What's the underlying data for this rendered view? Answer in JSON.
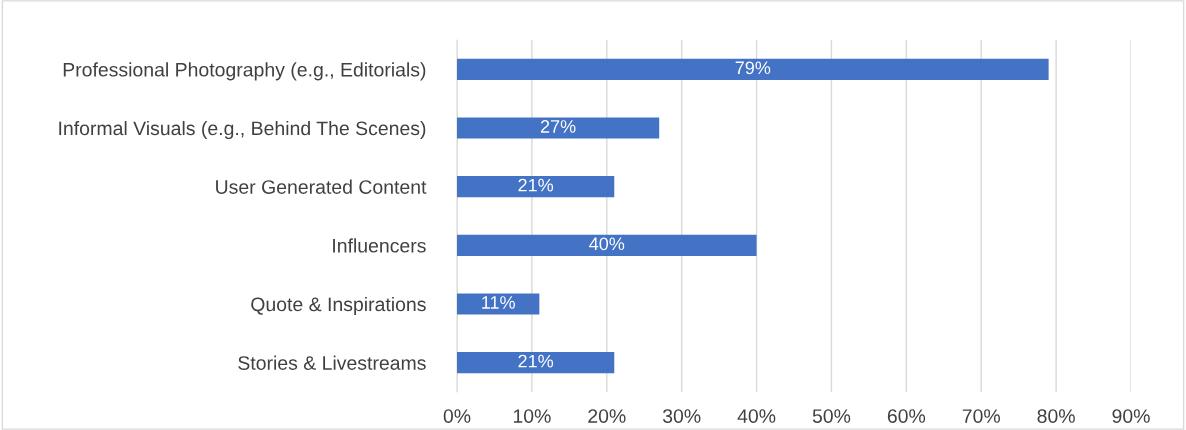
{
  "chart_data": {
    "type": "bar",
    "orientation": "horizontal",
    "categories": [
      "Professional Photography (e.g., Editorials)",
      "Informal Visuals (e.g., Behind The Scenes)",
      "User Generated Content",
      "Influencers",
      "Quote & Inspirations",
      "Stories & Livestreams"
    ],
    "values": [
      79,
      27,
      21,
      40,
      11,
      21
    ],
    "value_labels": [
      "79%",
      "27%",
      "21%",
      "40%",
      "11%",
      "21%"
    ],
    "color": "#4472c4",
    "xlim": [
      0,
      90
    ],
    "xticks": [
      {
        "value": 0,
        "label": "0%"
      },
      {
        "value": 10,
        "label": "10%"
      },
      {
        "value": 20,
        "label": "20%"
      },
      {
        "value": 30,
        "label": "30%"
      },
      {
        "value": 40,
        "label": "40%"
      },
      {
        "value": 50,
        "label": "50%"
      },
      {
        "value": 60,
        "label": "60%"
      },
      {
        "value": 70,
        "label": "70%"
      },
      {
        "value": 80,
        "label": "80%"
      },
      {
        "value": 90,
        "label": "90%"
      }
    ],
    "grid": "x",
    "legend": false
  }
}
